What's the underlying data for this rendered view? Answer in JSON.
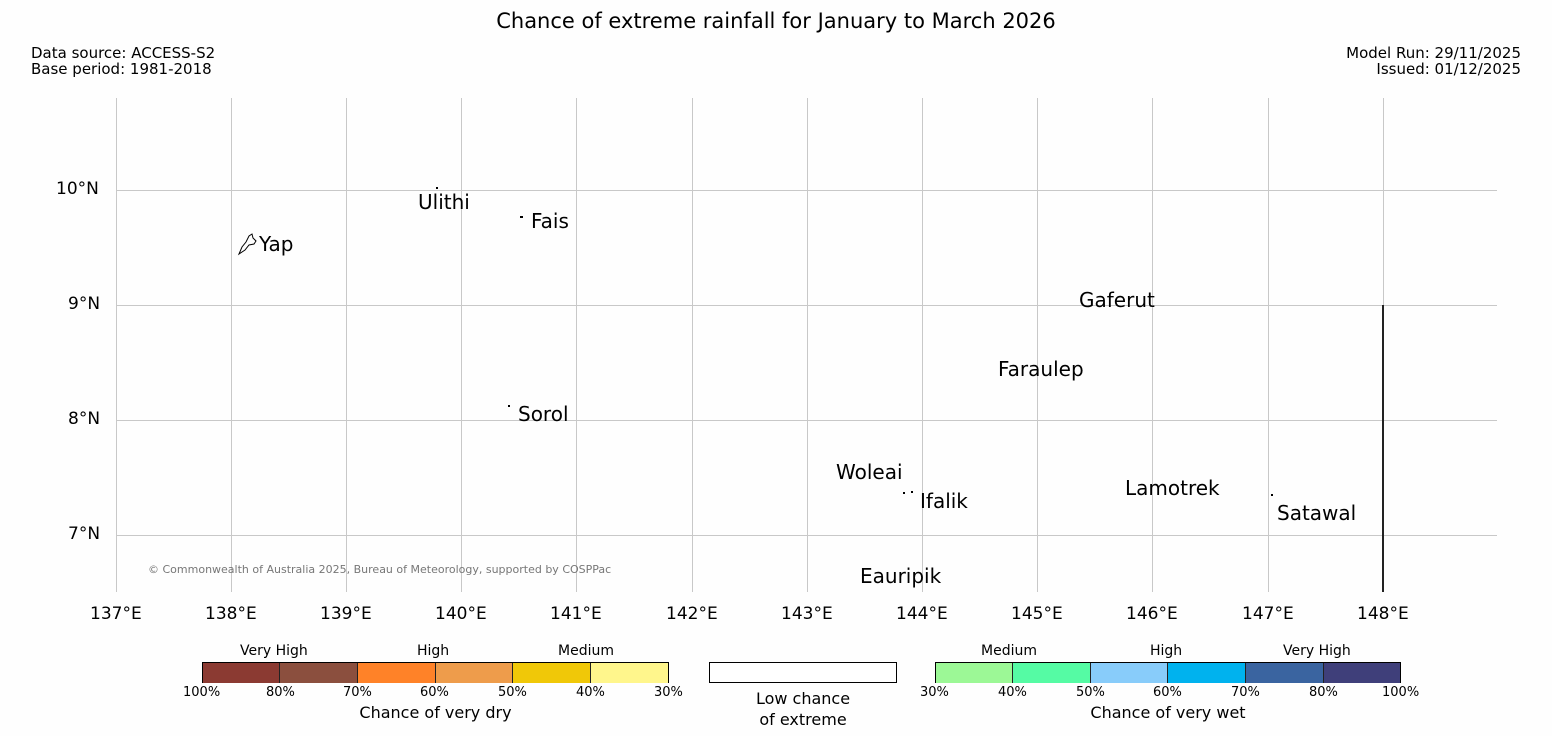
{
  "title": "Chance of extreme rainfall for January to March 2026",
  "data_source": "Data source: ACCESS-S2",
  "base_period": "Base period: 1981-2018",
  "model_run": "Model Run: 29/11/2025",
  "issued": "Issued: 01/12/2025",
  "copyright": "© Commonwealth of Australia 2025, Bureau of Meteorology, supported by COSPPac",
  "lon_ticks": [
    "137°E",
    "138°E",
    "139°E",
    "140°E",
    "141°E",
    "142°E",
    "143°E",
    "144°E",
    "145°E",
    "146°E",
    "147°E",
    "148°E"
  ],
  "lat_ticks": [
    "10°N",
    "9°N",
    "8°N",
    "7°N"
  ],
  "places": [
    "Yap",
    "Ulithi",
    "Fais",
    "Gaferut",
    "Faraulep",
    "Sorol",
    "Woleai",
    "Ifalik",
    "Lamotrek",
    "Satawal",
    "Eauripik"
  ],
  "legend": {
    "dry": {
      "title": "Chance of very dry",
      "categories": [
        "Very High",
        "High",
        "Medium"
      ],
      "ticks": [
        "100%",
        "80%",
        "70%",
        "60%",
        "50%",
        "40%",
        "30%"
      ],
      "colors": [
        "#8b3a32",
        "#8b4f3e",
        "#ff8228",
        "#ee9c4b",
        "#f0c808",
        "#fff68c"
      ]
    },
    "neutral": {
      "line1": "Low chance",
      "line2": "of extreme",
      "color": "#ffffff"
    },
    "wet": {
      "title": "Chance of very wet",
      "categories": [
        "Medium",
        "High",
        "Very High"
      ],
      "ticks": [
        "30%",
        "40%",
        "50%",
        "60%",
        "70%",
        "80%",
        "100%"
      ],
      "colors": [
        "#9cf896",
        "#55fba4",
        "#88ccfa",
        "#00b2ee",
        "#3a64a0",
        "#3f3f7a"
      ]
    }
  }
}
